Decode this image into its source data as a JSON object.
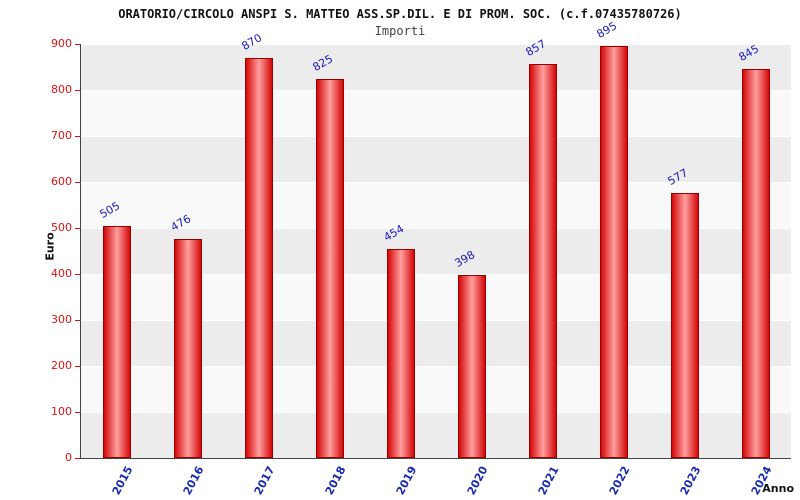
{
  "chart_data": {
    "type": "bar",
    "title": "ORATORIO/CIRCOLO ANSPI S. MATTEO ASS.SP.DIL. E DI PROM. SOC. (c.f.07435780726)",
    "subtitle": "Importi",
    "categories": [
      "2015",
      "2016",
      "2017",
      "2018",
      "2019",
      "2020",
      "2021",
      "2022",
      "2023",
      "2024"
    ],
    "values": [
      505,
      476,
      870,
      825,
      454,
      398,
      857,
      895,
      577,
      845
    ],
    "xlabel": "Anno",
    "ylabel": "Euro",
    "ylim": [
      0,
      900
    ],
    "ytick_step": 100,
    "ytick_labels": [
      "0",
      "100",
      "200",
      "300",
      "400",
      "500",
      "600",
      "700",
      "800",
      "900"
    ],
    "grid": "alternating horizontal bands, white gridlines every 100",
    "legend": "none",
    "colors": {
      "bar_edge": "#d40808",
      "bar_center": "#ff9f9f",
      "bar_border": "#990000",
      "value_label": "#1a1abb",
      "ytick_text": "#dd1111",
      "xtick_text": "#1a2ab0",
      "band_dark": "#ececec",
      "band_light": "#f9f9f9"
    }
  }
}
